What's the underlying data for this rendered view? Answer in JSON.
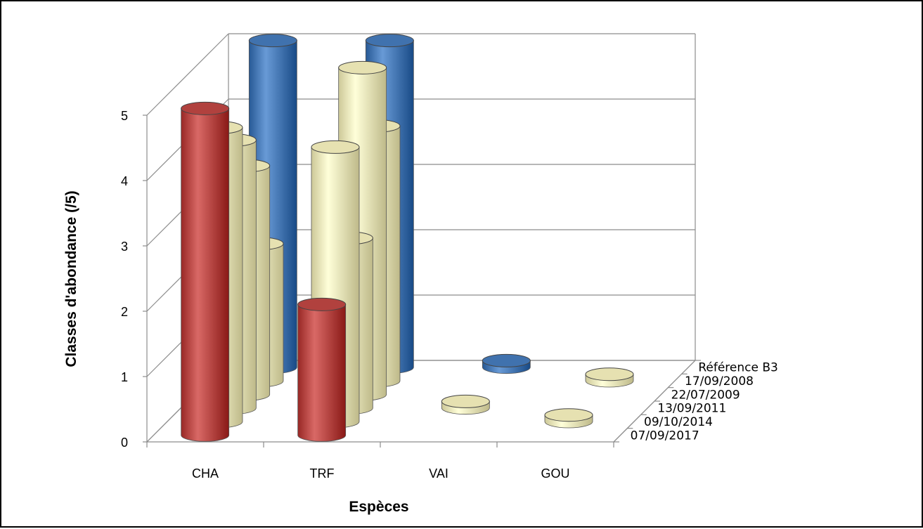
{
  "chart_data": {
    "type": "bar",
    "variant": "3d-cylinder",
    "title": "",
    "xlabel": "Espèces",
    "ylabel": "Classes d'abondance  (/5)",
    "ylim": [
      0,
      5
    ],
    "yticks": [
      "0",
      "1",
      "2",
      "3",
      "4",
      "5"
    ],
    "categories": [
      "CHA",
      "TRF",
      "VAI",
      "GOU"
    ],
    "series": [
      {
        "name": "07/09/2017",
        "color": "#c0504d",
        "values": [
          5,
          2,
          0,
          0
        ]
      },
      {
        "name": "09/10/2014",
        "color": "#f5f0c0",
        "values": [
          4.5,
          4.2,
          0,
          0.1
        ]
      },
      {
        "name": "13/09/2011",
        "color": "#f5f0c0",
        "values": [
          4.1,
          2.6,
          0.1,
          0
        ]
      },
      {
        "name": "22/07/2009",
        "color": "#f5f0c0",
        "values": [
          3.5,
          5,
          0,
          0
        ]
      },
      {
        "name": "17/09/2008",
        "color": "#f5f0c0",
        "values": [
          2.1,
          3.9,
          0,
          0.1
        ]
      },
      {
        "name": "Référence B3",
        "color": "#4f81bd",
        "values": [
          5,
          5,
          0.1,
          0
        ]
      }
    ],
    "grid": true,
    "legend": "depth-axis"
  }
}
